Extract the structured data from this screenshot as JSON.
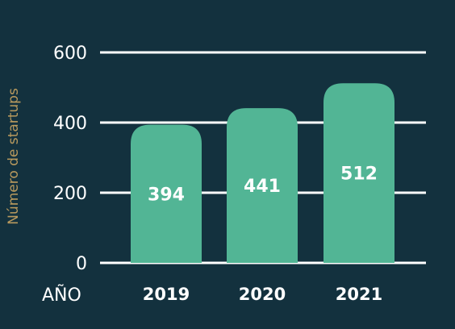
{
  "colors": {
    "background": "#13313e",
    "bar": "#52b595",
    "grid": "#ffffff",
    "text": "#ffffff",
    "ylabel": "#b99a5e"
  },
  "chart_data": {
    "type": "bar",
    "categories": [
      "2019",
      "2020",
      "2021"
    ],
    "values": [
      394,
      441,
      512
    ],
    "data_labels": [
      "394",
      "441",
      "512"
    ],
    "xlabel": "AÑO",
    "ylabel": "Número de startups",
    "ylim": [
      0,
      600
    ],
    "yticks": [
      0,
      200,
      400,
      600
    ],
    "ytick_labels": [
      "0",
      "200",
      "400",
      "600"
    ],
    "grid": true,
    "legend": "none"
  }
}
